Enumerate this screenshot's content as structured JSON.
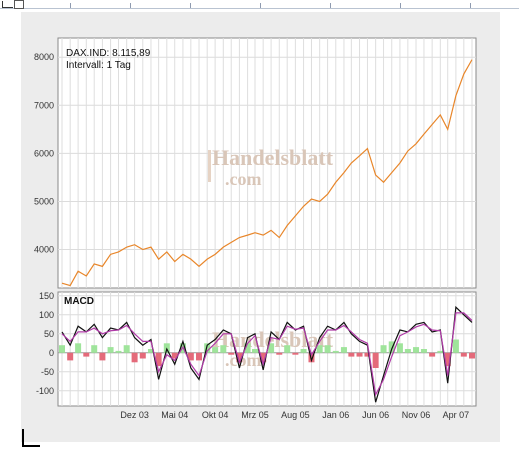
{
  "chart_data": [
    {
      "type": "line",
      "title": "DAX.IND: 8.115,89",
      "subtitle": "Intervall: 1 Tag",
      "watermark": "Handelsblatt",
      "watermark_sub": ".com",
      "ylim": [
        3200,
        8400
      ],
      "yticks": [
        4000,
        5000,
        6000,
        7000,
        8000
      ],
      "grid": true,
      "line_color": "#e8862a",
      "x_range": [
        "2003-03-01",
        "2007-06-01"
      ],
      "series": [
        {
          "points": [
            [
              "2003-03-01",
              3300
            ],
            [
              "2003-04-01",
              3250
            ],
            [
              "2003-05-01",
              3550
            ],
            [
              "2003-06-01",
              3450
            ],
            [
              "2003-07-01",
              3700
            ],
            [
              "2003-08-01",
              3650
            ],
            [
              "2003-09-01",
              3900
            ],
            [
              "2003-10-01",
              3950
            ],
            [
              "2003-11-01",
              4050
            ],
            [
              "2003-12-01",
              4100
            ],
            [
              "2004-01-01",
              4000
            ],
            [
              "2004-02-01",
              4050
            ],
            [
              "2004-03-01",
              3800
            ],
            [
              "2004-04-01",
              3950
            ],
            [
              "2004-05-01",
              3750
            ],
            [
              "2004-06-01",
              3900
            ],
            [
              "2004-07-01",
              3800
            ],
            [
              "2004-08-01",
              3650
            ],
            [
              "2004-09-01",
              3800
            ],
            [
              "2004-10-01",
              3900
            ],
            [
              "2004-11-01",
              4050
            ],
            [
              "2004-12-01",
              4150
            ],
            [
              "2005-01-01",
              4250
            ],
            [
              "2005-02-01",
              4300
            ],
            [
              "2005-03-01",
              4350
            ],
            [
              "2005-04-01",
              4300
            ],
            [
              "2005-05-01",
              4400
            ],
            [
              "2005-06-01",
              4250
            ],
            [
              "2005-07-01",
              4500
            ],
            [
              "2005-08-01",
              4700
            ],
            [
              "2005-09-01",
              4900
            ],
            [
              "2005-10-01",
              5050
            ],
            [
              "2005-11-01",
              5000
            ],
            [
              "2005-12-01",
              5150
            ],
            [
              "2006-01-01",
              5400
            ],
            [
              "2006-02-01",
              5600
            ],
            [
              "2006-03-01",
              5800
            ],
            [
              "2006-04-01",
              5950
            ],
            [
              "2006-05-01",
              6100
            ],
            [
              "2006-06-01",
              5550
            ],
            [
              "2006-07-01",
              5400
            ],
            [
              "2006-08-01",
              5600
            ],
            [
              "2006-09-01",
              5800
            ],
            [
              "2006-10-01",
              6050
            ],
            [
              "2006-11-01",
              6200
            ],
            [
              "2006-12-01",
              6400
            ],
            [
              "2007-01-01",
              6600
            ],
            [
              "2007-02-01",
              6800
            ],
            [
              "2007-03-01",
              6500
            ],
            [
              "2007-04-01",
              7200
            ],
            [
              "2007-05-01",
              7650
            ],
            [
              "2007-06-01",
              7950
            ]
          ]
        }
      ]
    },
    {
      "type": "line",
      "title": "MACD",
      "watermark": "Handelsblatt",
      "watermark_sub": ".com",
      "ylim": [
        -140,
        160
      ],
      "yticks": [
        150,
        100,
        50,
        0,
        -50,
        -100
      ],
      "grid": true,
      "x_tick_labels": [
        "Dez 03",
        "Mai 04",
        "Okt 04",
        "Mrz 05",
        "Aug 05",
        "Jan 06",
        "Jun 06",
        "Nov 06",
        "Apr 07"
      ],
      "x_ticks": [
        "2003-12-01",
        "2004-05-01",
        "2004-10-01",
        "2005-03-01",
        "2005-08-01",
        "2006-01-01",
        "2006-06-01",
        "2006-11-01",
        "2007-04-01"
      ],
      "x_range": [
        "2003-03-01",
        "2007-06-01"
      ],
      "series": [
        {
          "type": "line",
          "color": "#111111",
          "points": [
            [
              "2003-03-01",
              55
            ],
            [
              "2003-04-01",
              20
            ],
            [
              "2003-05-01",
              70
            ],
            [
              "2003-06-01",
              55
            ],
            [
              "2003-07-01",
              75
            ],
            [
              "2003-08-01",
              40
            ],
            [
              "2003-09-01",
              65
            ],
            [
              "2003-10-01",
              60
            ],
            [
              "2003-11-01",
              80
            ],
            [
              "2003-12-01",
              40
            ],
            [
              "2004-01-01",
              20
            ],
            [
              "2004-02-01",
              35
            ],
            [
              "2004-03-01",
              -70
            ],
            [
              "2004-04-01",
              10
            ],
            [
              "2004-05-01",
              -30
            ],
            [
              "2004-06-01",
              30
            ],
            [
              "2004-07-01",
              -40
            ],
            [
              "2004-08-01",
              -70
            ],
            [
              "2004-09-01",
              20
            ],
            [
              "2004-10-01",
              35
            ],
            [
              "2004-11-01",
              60
            ],
            [
              "2004-12-01",
              50
            ],
            [
              "2005-01-01",
              -40
            ],
            [
              "2005-02-01",
              40
            ],
            [
              "2005-03-01",
              50
            ],
            [
              "2005-04-01",
              -45
            ],
            [
              "2005-05-01",
              55
            ],
            [
              "2005-06-01",
              35
            ],
            [
              "2005-07-01",
              80
            ],
            [
              "2005-08-01",
              60
            ],
            [
              "2005-09-01",
              70
            ],
            [
              "2005-10-01",
              -20
            ],
            [
              "2005-11-01",
              40
            ],
            [
              "2005-12-01",
              70
            ],
            [
              "2006-01-01",
              60
            ],
            [
              "2006-02-01",
              80
            ],
            [
              "2006-03-01",
              50
            ],
            [
              "2006-04-01",
              30
            ],
            [
              "2006-05-01",
              20
            ],
            [
              "2006-06-01",
              -130
            ],
            [
              "2006-07-01",
              -60
            ],
            [
              "2006-08-01",
              10
            ],
            [
              "2006-09-01",
              60
            ],
            [
              "2006-10-01",
              55
            ],
            [
              "2006-11-01",
              75
            ],
            [
              "2006-12-01",
              80
            ],
            [
              "2007-01-01",
              55
            ],
            [
              "2007-02-01",
              60
            ],
            [
              "2007-03-01",
              -80
            ],
            [
              "2007-04-01",
              120
            ],
            [
              "2007-05-01",
              100
            ],
            [
              "2007-06-01",
              80
            ]
          ]
        },
        {
          "type": "line",
          "color": "#b03aa8",
          "points": [
            [
              "2003-03-01",
              50
            ],
            [
              "2003-04-01",
              30
            ],
            [
              "2003-05-01",
              55
            ],
            [
              "2003-06-01",
              55
            ],
            [
              "2003-07-01",
              65
            ],
            [
              "2003-08-01",
              50
            ],
            [
              "2003-09-01",
              58
            ],
            [
              "2003-10-01",
              60
            ],
            [
              "2003-11-01",
              72
            ],
            [
              "2003-12-01",
              50
            ],
            [
              "2004-01-01",
              30
            ],
            [
              "2004-02-01",
              30
            ],
            [
              "2004-03-01",
              -50
            ],
            [
              "2004-04-01",
              -5
            ],
            [
              "2004-05-01",
              -20
            ],
            [
              "2004-06-01",
              15
            ],
            [
              "2004-07-01",
              -30
            ],
            [
              "2004-08-01",
              -60
            ],
            [
              "2004-09-01",
              5
            ],
            [
              "2004-10-01",
              25
            ],
            [
              "2004-11-01",
              50
            ],
            [
              "2004-12-01",
              50
            ],
            [
              "2005-01-01",
              -25
            ],
            [
              "2005-02-01",
              25
            ],
            [
              "2005-03-01",
              45
            ],
            [
              "2005-04-01",
              -30
            ],
            [
              "2005-05-01",
              40
            ],
            [
              "2005-06-01",
              35
            ],
            [
              "2005-07-01",
              70
            ],
            [
              "2005-08-01",
              62
            ],
            [
              "2005-09-01",
              65
            ],
            [
              "2005-10-01",
              -5
            ],
            [
              "2005-11-01",
              30
            ],
            [
              "2005-12-01",
              60
            ],
            [
              "2006-01-01",
              60
            ],
            [
              "2006-02-01",
              72
            ],
            [
              "2006-03-01",
              55
            ],
            [
              "2006-04-01",
              35
            ],
            [
              "2006-05-01",
              25
            ],
            [
              "2006-06-01",
              -110
            ],
            [
              "2006-07-01",
              -70
            ],
            [
              "2006-08-01",
              -10
            ],
            [
              "2006-09-01",
              45
            ],
            [
              "2006-10-01",
              55
            ],
            [
              "2006-11-01",
              68
            ],
            [
              "2006-12-01",
              75
            ],
            [
              "2007-01-01",
              60
            ],
            [
              "2007-02-01",
              58
            ],
            [
              "2007-03-01",
              -60
            ],
            [
              "2007-04-01",
              105
            ],
            [
              "2007-05-01",
              105
            ],
            [
              "2007-06-01",
              85
            ]
          ]
        },
        {
          "type": "histogram",
          "positive_color": "#9fe49b",
          "negative_color": "#e46a7a",
          "points": [
            [
              "2003-03-01",
              20
            ],
            [
              "2003-04-01",
              -20
            ],
            [
              "2003-05-01",
              25
            ],
            [
              "2003-06-01",
              -10
            ],
            [
              "2003-07-01",
              20
            ],
            [
              "2003-08-01",
              -20
            ],
            [
              "2003-09-01",
              15
            ],
            [
              "2003-10-01",
              5
            ],
            [
              "2003-11-01",
              20
            ],
            [
              "2003-12-01",
              -25
            ],
            [
              "2004-01-01",
              -15
            ],
            [
              "2004-02-01",
              10
            ],
            [
              "2004-03-01",
              -35
            ],
            [
              "2004-04-01",
              25
            ],
            [
              "2004-05-01",
              -15
            ],
            [
              "2004-06-01",
              25
            ],
            [
              "2004-07-01",
              -20
            ],
            [
              "2004-08-01",
              -20
            ],
            [
              "2004-09-01",
              25
            ],
            [
              "2004-10-01",
              15
            ],
            [
              "2004-11-01",
              20
            ],
            [
              "2004-12-01",
              -5
            ],
            [
              "2005-01-01",
              -25
            ],
            [
              "2005-02-01",
              25
            ],
            [
              "2005-03-01",
              10
            ],
            [
              "2005-04-01",
              -25
            ],
            [
              "2005-05-01",
              25
            ],
            [
              "2005-06-01",
              -5
            ],
            [
              "2005-07-01",
              20
            ],
            [
              "2005-08-01",
              -5
            ],
            [
              "2005-09-01",
              10
            ],
            [
              "2005-10-01",
              -25
            ],
            [
              "2005-11-01",
              20
            ],
            [
              "2005-12-01",
              20
            ],
            [
              "2006-01-01",
              5
            ],
            [
              "2006-02-01",
              15
            ],
            [
              "2006-03-01",
              -10
            ],
            [
              "2006-04-01",
              -10
            ],
            [
              "2006-05-01",
              -10
            ],
            [
              "2006-06-01",
              -40
            ],
            [
              "2006-07-01",
              20
            ],
            [
              "2006-08-01",
              30
            ],
            [
              "2006-09-01",
              25
            ],
            [
              "2006-10-01",
              10
            ],
            [
              "2006-11-01",
              15
            ],
            [
              "2006-12-01",
              10
            ],
            [
              "2007-01-01",
              -10
            ],
            [
              "2007-02-01",
              5
            ],
            [
              "2007-03-01",
              -35
            ],
            [
              "2007-04-01",
              35
            ],
            [
              "2007-05-01",
              -10
            ],
            [
              "2007-06-01",
              -15
            ]
          ]
        }
      ]
    }
  ]
}
